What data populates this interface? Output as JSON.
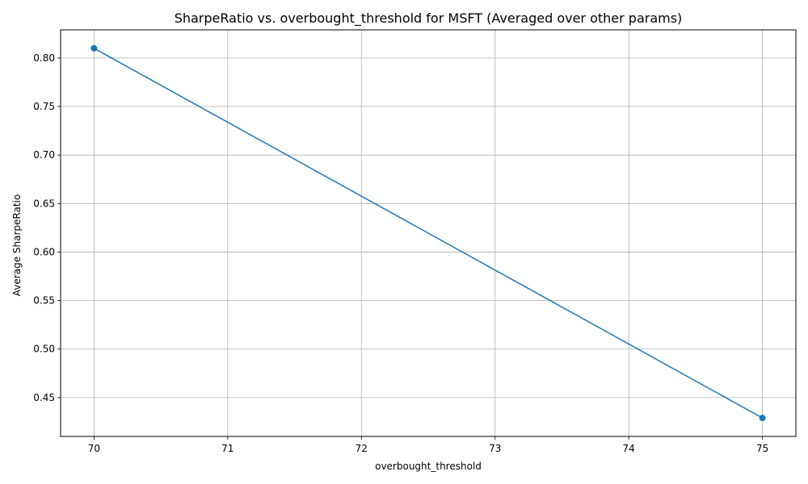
{
  "chart_data": {
    "type": "line",
    "title": "SharpeRatio vs. overbought_threshold for MSFT (Averaged over other params)",
    "xlabel": "overbought_threshold",
    "ylabel": "Average SharpeRatio",
    "x": [
      70,
      75
    ],
    "series": [
      {
        "values": [
          0.81,
          0.429
        ],
        "color": "#1f77b4",
        "marker": "circle"
      }
    ],
    "xlim": [
      69.75,
      75.25
    ],
    "ylim": [
      0.41,
      0.829
    ],
    "xticks": [
      70,
      71,
      72,
      73,
      74,
      75
    ],
    "xtick_labels": [
      "70",
      "71",
      "72",
      "73",
      "74",
      "75"
    ],
    "yticks": [
      0.45,
      0.5,
      0.55,
      0.6,
      0.65,
      0.7,
      0.75,
      0.8
    ],
    "ytick_labels": [
      "0.45",
      "0.50",
      "0.55",
      "0.60",
      "0.65",
      "0.70",
      "0.75",
      "0.80"
    ],
    "grid": true,
    "legend": false
  }
}
